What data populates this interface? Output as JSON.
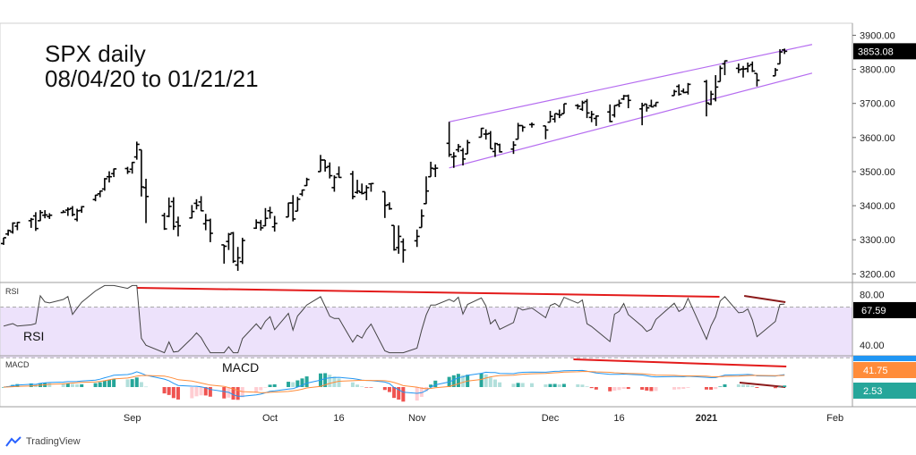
{
  "chart_title": {
    "line1": "SPX daily",
    "line2": "08/04/20 to 01/21/21"
  },
  "watermark": "TradingView",
  "colors": {
    "bar": "#000000",
    "channel": "#b56cf0",
    "divergence": "#e31b1b",
    "divergence_dark": "#8b1a1a",
    "rsi_line": "#444444",
    "rsi_band": "#ede2fb",
    "macd_line": "#2196f3",
    "signal_line": "#ff8c3a",
    "hist_pos_strong": "#26a69a",
    "hist_pos_weak": "#b2dfdb",
    "hist_neg_strong": "#ef5350",
    "hist_neg_weak": "#ffcdd2",
    "price_label_bg": "#000000",
    "macd_label_bg": "#ff8c3a",
    "hist_label_bg": "#26a69a"
  },
  "chart_data": [
    {
      "type": "ohlc",
      "panel": "price",
      "ylim": [
        3180,
        3930
      ],
      "y_ticks": [
        "3900.00",
        "3800.00",
        "3700.00",
        "3600.00",
        "3500.00",
        "3400.00",
        "3300.00",
        "3200.00"
      ],
      "last_price_label": "3853.08",
      "x_tick_labels": [
        "Sep",
        "Oct",
        "16",
        "Nov",
        "Dec",
        "16",
        "2021",
        "Feb"
      ],
      "x_tick_dates": [
        "2020-09-01",
        "2020-10-01",
        "2020-10-16",
        "2020-11-02",
        "2020-12-01",
        "2020-12-16",
        "2021-01-04",
        "2021-02-01"
      ],
      "x_range": [
        "2020-08-04",
        "2021-02-04"
      ],
      "series": [
        [
          "2020-08-04",
          3289,
          3306,
          3285,
          3306
        ],
        [
          "2020-08-05",
          3317,
          3330,
          3312,
          3327
        ],
        [
          "2020-08-06",
          3323,
          3351,
          3318,
          3349
        ],
        [
          "2020-08-07",
          3340,
          3352,
          3328,
          3351
        ],
        [
          "2020-08-10",
          3356,
          3364,
          3335,
          3360
        ],
        [
          "2020-08-11",
          3370,
          3381,
          3326,
          3333
        ],
        [
          "2020-08-12",
          3356,
          3387,
          3355,
          3380
        ],
        [
          "2020-08-13",
          3372,
          3387,
          3363,
          3373
        ],
        [
          "2020-08-14",
          3368,
          3378,
          3361,
          3372
        ],
        [
          "2020-08-17",
          3380,
          3387,
          3379,
          3381
        ],
        [
          "2020-08-18",
          3387,
          3395,
          3370,
          3389
        ],
        [
          "2020-08-19",
          3392,
          3399,
          3369,
          3374
        ],
        [
          "2020-08-20",
          3360,
          3391,
          3354,
          3385
        ],
        [
          "2020-08-21",
          3386,
          3399,
          3379,
          3397
        ],
        [
          "2020-08-24",
          3418,
          3432,
          3413,
          3431
        ],
        [
          "2020-08-25",
          3435,
          3444,
          3425,
          3443
        ],
        [
          "2020-08-26",
          3449,
          3481,
          3444,
          3479
        ],
        [
          "2020-08-27",
          3485,
          3501,
          3468,
          3485
        ],
        [
          "2020-08-28",
          3494,
          3509,
          3484,
          3508
        ],
        [
          "2020-08-31",
          3509,
          3514,
          3493,
          3500
        ],
        [
          "2020-09-01",
          3507,
          3528,
          3494,
          3527
        ],
        [
          "2020-09-02",
          3543,
          3588,
          3535,
          3580
        ],
        [
          "2020-09-03",
          3564,
          3564,
          3427,
          3455
        ],
        [
          "2020-09-04",
          3453,
          3479,
          3349,
          3427
        ],
        [
          "2020-09-08",
          3371,
          3379,
          3329,
          3332
        ],
        [
          "2020-09-09",
          3369,
          3424,
          3366,
          3398
        ],
        [
          "2020-09-10",
          3412,
          3425,
          3329,
          3339
        ],
        [
          "2020-09-11",
          3352,
          3368,
          3310,
          3341
        ],
        [
          "2020-09-14",
          3364,
          3402,
          3363,
          3383
        ],
        [
          "2020-09-15",
          3407,
          3419,
          3389,
          3401
        ],
        [
          "2020-09-16",
          3411,
          3428,
          3384,
          3385
        ],
        [
          "2020-09-17",
          3347,
          3376,
          3328,
          3357
        ],
        [
          "2020-09-18",
          3357,
          3362,
          3293,
          3319
        ],
        [
          "2020-09-21",
          3285,
          3285,
          3230,
          3281
        ],
        [
          "2020-09-22",
          3295,
          3320,
          3270,
          3316
        ],
        [
          "2020-09-23",
          3320,
          3323,
          3232,
          3237
        ],
        [
          "2020-09-24",
          3226,
          3279,
          3209,
          3247
        ],
        [
          "2020-09-25",
          3236,
          3306,
          3229,
          3298
        ],
        [
          "2020-09-28",
          3334,
          3360,
          3332,
          3351
        ],
        [
          "2020-09-29",
          3350,
          3358,
          3327,
          3335
        ],
        [
          "2020-09-30",
          3341,
          3393,
          3340,
          3363
        ],
        [
          "2020-10-01",
          3385,
          3397,
          3362,
          3380
        ],
        [
          "2020-10-02",
          3338,
          3370,
          3324,
          3348
        ],
        [
          "2020-10-05",
          3367,
          3409,
          3367,
          3408
        ],
        [
          "2020-10-06",
          3408,
          3431,
          3354,
          3361
        ],
        [
          "2020-10-07",
          3384,
          3426,
          3384,
          3419
        ],
        [
          "2020-10-08",
          3434,
          3447,
          3428,
          3446
        ],
        [
          "2020-10-09",
          3459,
          3482,
          3458,
          3477
        ],
        [
          "2020-10-12",
          3500,
          3549,
          3500,
          3534
        ],
        [
          "2020-10-13",
          3534,
          3534,
          3500,
          3512
        ],
        [
          "2020-10-14",
          3515,
          3527,
          3480,
          3488
        ],
        [
          "2020-10-15",
          3453,
          3489,
          3441,
          3483
        ],
        [
          "2020-10-16",
          3493,
          3515,
          3482,
          3483
        ],
        [
          "2020-10-19",
          3493,
          3502,
          3419,
          3427
        ],
        [
          "2020-10-20",
          3439,
          3476,
          3435,
          3443
        ],
        [
          "2020-10-21",
          3439,
          3465,
          3433,
          3436
        ],
        [
          "2020-10-22",
          3439,
          3460,
          3416,
          3453
        ],
        [
          "2020-10-23",
          3464,
          3466,
          3441,
          3465
        ],
        [
          "2020-10-26",
          3441,
          3441,
          3364,
          3401
        ],
        [
          "2020-10-27",
          3403,
          3410,
          3388,
          3391
        ],
        [
          "2020-10-28",
          3342,
          3342,
          3268,
          3271
        ],
        [
          "2020-10-29",
          3277,
          3342,
          3259,
          3310
        ],
        [
          "2020-10-30",
          3294,
          3304,
          3233,
          3270
        ],
        [
          "2020-11-02",
          3297,
          3330,
          3279,
          3310
        ],
        [
          "2020-11-03",
          3336,
          3389,
          3336,
          3370
        ],
        [
          "2020-11-04",
          3406,
          3486,
          3405,
          3443
        ],
        [
          "2020-11-05",
          3485,
          3529,
          3485,
          3510
        ],
        [
          "2020-11-06",
          3508,
          3521,
          3484,
          3510
        ],
        [
          "2020-11-09",
          3583,
          3646,
          3543,
          3550
        ],
        [
          "2020-11-10",
          3543,
          3557,
          3511,
          3545
        ],
        [
          "2020-11-11",
          3564,
          3581,
          3557,
          3573
        ],
        [
          "2020-11-12",
          3562,
          3569,
          3518,
          3537
        ],
        [
          "2020-11-13",
          3552,
          3593,
          3552,
          3585
        ],
        [
          "2020-11-16",
          3601,
          3628,
          3601,
          3627
        ],
        [
          "2020-11-17",
          3610,
          3624,
          3594,
          3610
        ],
        [
          "2020-11-18",
          3612,
          3619,
          3567,
          3567
        ],
        [
          "2020-11-19",
          3559,
          3585,
          3543,
          3582
        ],
        [
          "2020-11-20",
          3579,
          3582,
          3556,
          3558
        ],
        [
          "2020-11-23",
          3566,
          3589,
          3552,
          3578
        ],
        [
          "2020-11-24",
          3595,
          3643,
          3595,
          3635
        ],
        [
          "2020-11-25",
          3635,
          3635,
          3617,
          3630
        ],
        [
          "2020-11-27",
          3638,
          3644,
          3629,
          3638
        ],
        [
          "2020-11-30",
          3634,
          3634,
          3595,
          3622
        ],
        [
          "2020-12-01",
          3645,
          3678,
          3645,
          3662
        ],
        [
          "2020-12-02",
          3654,
          3670,
          3644,
          3670
        ],
        [
          "2020-12-03",
          3668,
          3682,
          3657,
          3666
        ],
        [
          "2020-12-04",
          3670,
          3699,
          3670,
          3699
        ],
        [
          "2020-12-07",
          3694,
          3698,
          3683,
          3692
        ],
        [
          "2020-12-08",
          3683,
          3708,
          3678,
          3702
        ],
        [
          "2020-12-09",
          3706,
          3713,
          3657,
          3672
        ],
        [
          "2020-12-10",
          3659,
          3678,
          3645,
          3668
        ],
        [
          "2020-12-11",
          3656,
          3665,
          3634,
          3663
        ],
        [
          "2020-12-14",
          3675,
          3697,
          3645,
          3647
        ],
        [
          "2020-12-15",
          3666,
          3695,
          3659,
          3694
        ],
        [
          "2020-12-16",
          3696,
          3711,
          3689,
          3701
        ],
        [
          "2020-12-17",
          3713,
          3725,
          3710,
          3722
        ],
        [
          "2020-12-18",
          3722,
          3726,
          3686,
          3709
        ],
        [
          "2020-12-21",
          3684,
          3702,
          3636,
          3694
        ],
        [
          "2020-12-22",
          3698,
          3698,
          3676,
          3687
        ],
        [
          "2020-12-23",
          3693,
          3711,
          3689,
          3690
        ],
        [
          "2020-12-24",
          3694,
          3703,
          3690,
          3703
        ],
        [
          "2020-12-28",
          3723,
          3740,
          3723,
          3735
        ],
        [
          "2020-12-29",
          3750,
          3756,
          3723,
          3727
        ],
        [
          "2020-12-30",
          3736,
          3744,
          3730,
          3732
        ],
        [
          "2020-12-31",
          3733,
          3760,
          3726,
          3756
        ],
        [
          "2021-01-04",
          3764,
          3769,
          3662,
          3701
        ],
        [
          "2021-01-05",
          3698,
          3737,
          3695,
          3727
        ],
        [
          "2021-01-06",
          3713,
          3783,
          3706,
          3748
        ],
        [
          "2021-01-07",
          3764,
          3811,
          3764,
          3803
        ],
        [
          "2021-01-08",
          3816,
          3826,
          3783,
          3825
        ],
        [
          "2021-01-11",
          3803,
          3817,
          3789,
          3799
        ],
        [
          "2021-01-12",
          3801,
          3810,
          3776,
          3801
        ],
        [
          "2021-01-13",
          3802,
          3820,
          3791,
          3810
        ],
        [
          "2021-01-14",
          3814,
          3823,
          3792,
          3795
        ],
        [
          "2021-01-15",
          3788,
          3788,
          3750,
          3768
        ],
        [
          "2021-01-19",
          3781,
          3804,
          3781,
          3798
        ],
        [
          "2021-01-20",
          3816,
          3859,
          3816,
          3851
        ],
        [
          "2021-01-21",
          3857,
          3861,
          3845,
          3853
        ]
      ],
      "channel_upper": [
        [
          "2020-11-09",
          3646
        ],
        [
          "2021-01-27",
          3873
        ]
      ],
      "channel_lower": [
        [
          "2020-11-09",
          3511
        ],
        [
          "2021-01-27",
          3789
        ]
      ]
    },
    {
      "type": "line",
      "panel": "rsi",
      "name": "RSI",
      "last_label": "67.59",
      "y_ticks": [
        "80.00",
        "40.00"
      ],
      "ylim": [
        33,
        88
      ],
      "band": [
        30,
        70
      ],
      "values_note_units": "RSI points"
    },
    {
      "type": "line+histogram",
      "panel": "macd",
      "name": "MACD",
      "last_macd_label": "41.75",
      "last_hist_label": "2.53",
      "ylim": [
        -70,
        105
      ]
    }
  ]
}
